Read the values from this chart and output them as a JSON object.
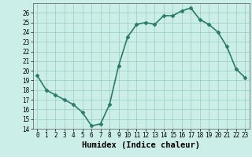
{
  "x": [
    0,
    1,
    2,
    3,
    4,
    5,
    6,
    7,
    8,
    9,
    10,
    11,
    12,
    13,
    14,
    15,
    16,
    17,
    18,
    19,
    20,
    21,
    22,
    23
  ],
  "y": [
    19.5,
    18.0,
    17.5,
    17.0,
    16.5,
    15.7,
    14.3,
    14.5,
    16.5,
    20.5,
    23.5,
    24.8,
    25.0,
    24.8,
    25.7,
    25.7,
    26.2,
    26.5,
    25.3,
    24.8,
    24.0,
    22.5,
    20.2,
    19.3
  ],
  "title": "",
  "xlabel": "Humidex (Indice chaleur)",
  "ylabel": "",
  "ylim": [
    14,
    27
  ],
  "xlim": [
    -0.5,
    23.5
  ],
  "yticks": [
    14,
    15,
    16,
    17,
    18,
    19,
    20,
    21,
    22,
    23,
    24,
    25,
    26
  ],
  "xticks": [
    0,
    1,
    2,
    3,
    4,
    5,
    6,
    7,
    8,
    9,
    10,
    11,
    12,
    13,
    14,
    15,
    16,
    17,
    18,
    19,
    20,
    21,
    22,
    23
  ],
  "line_color": "#2a7b6b",
  "marker_color": "#2a7b6b",
  "bg_color": "#cceee8",
  "grid_color": "#99ccbb",
  "tick_label_fontsize": 5.5,
  "xlabel_fontsize": 7.5,
  "marker": "D",
  "marker_size": 2.5,
  "line_width": 1.2
}
